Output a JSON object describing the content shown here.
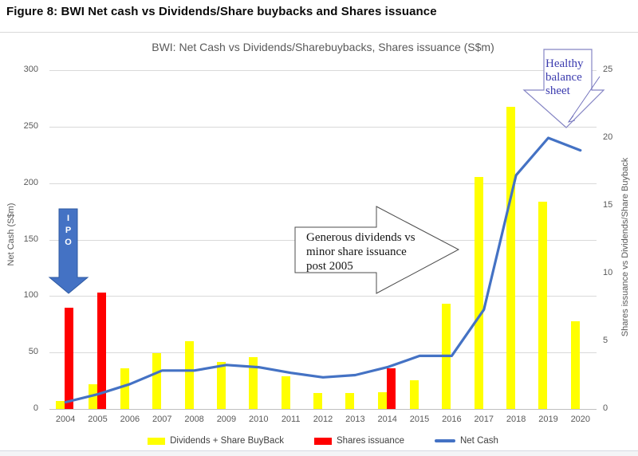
{
  "figure": {
    "title": "Figure 8: BWI Net cash vs Dividends/Share buybacks and Shares issuance"
  },
  "chart": {
    "title": "BWI: Net Cash vs Dividends/Sharebuybacks, Shares issuance (S$m)",
    "left_axis": {
      "title": "Net Cash (S$m)",
      "ticks": [
        0,
        50,
        100,
        150,
        200,
        250,
        300
      ],
      "max": 300
    },
    "right_axis": {
      "title": "Shares issuance vs Dividends/Share Buyback",
      "ticks": [
        0,
        5,
        10,
        15,
        20,
        25
      ],
      "max": 25
    },
    "legend": [
      {
        "label": "Dividends + Share BuyBack",
        "color": "#FFFF00",
        "type": "bar"
      },
      {
        "label": "Shares issuance",
        "color": "#FF0000",
        "type": "bar"
      },
      {
        "label": "Net Cash",
        "color": "#4472C4",
        "type": "line"
      }
    ]
  },
  "chart_data": {
    "type": "bar",
    "subtype": "clustered bars + line overlay",
    "title": "BWI: Net Cash vs Dividends/Sharebuybacks, Shares issuance (S$m)",
    "categories": [
      2004,
      2005,
      2006,
      2007,
      2008,
      2009,
      2010,
      2011,
      2012,
      2013,
      2014,
      2015,
      2016,
      2017,
      2018,
      2019,
      2020
    ],
    "series": [
      {
        "name": "Dividends + Share BuyBack",
        "type": "bar",
        "axis": "right",
        "color": "#FFFF00",
        "values": [
          0.6,
          1.8,
          3.0,
          4.1,
          5.0,
          3.5,
          3.8,
          2.4,
          1.2,
          1.2,
          1.25,
          2.1,
          7.75,
          17.1,
          22.3,
          15.3,
          6.5
        ]
      },
      {
        "name": "Shares issuance",
        "type": "bar",
        "axis": "right",
        "color": "#FF0000",
        "values": [
          7.5,
          8.6,
          0,
          0,
          0,
          0,
          0,
          0,
          0,
          0,
          3.0,
          0,
          0,
          0,
          0,
          0,
          0
        ]
      },
      {
        "name": "Net Cash",
        "type": "line",
        "axis": "left",
        "color": "#4472C4",
        "values": [
          6,
          13,
          22,
          34,
          34,
          39,
          37,
          32,
          28,
          30,
          37,
          47,
          47,
          88,
          207,
          240,
          229
        ]
      }
    ],
    "xlabel": "",
    "ylabel_left": "Net Cash (S$m)",
    "ylabel_right": "Shares issuance vs Dividends/Share Buyback",
    "ylim_left": [
      0,
      300
    ],
    "ylim_right": [
      0,
      25
    ],
    "grid": true,
    "legend_position": "bottom"
  },
  "annotations": {
    "ipo": {
      "label": "I\nP\nO",
      "fill": "#4472C4"
    },
    "generous": {
      "text": "Generous dividends vs\nminor share issuance\npost 2005"
    },
    "healthy": {
      "text": "Healthy\nbalance\nsheet",
      "color": "#3B3BAF"
    }
  }
}
